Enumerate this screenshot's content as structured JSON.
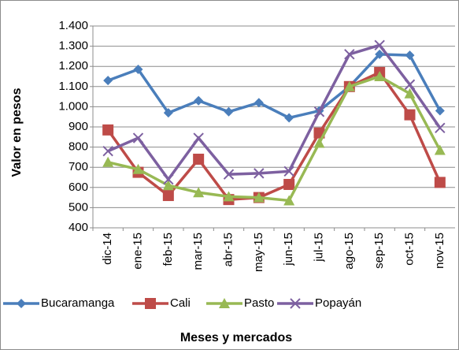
{
  "chart_data": {
    "type": "line",
    "y_label": "Valor en pesos",
    "x_label": "Meses y mercados",
    "categories": [
      "dic-14",
      "ene-15",
      "feb-15",
      "mar-15",
      "abr-15",
      "may-15",
      "jun-15",
      "jul-15",
      "ago-15",
      "sep-15",
      "oct-15",
      "nov-15"
    ],
    "series": [
      {
        "name": "Bucaramanga",
        "color": "#4a7ebb",
        "marker": "diamond",
        "values": [
          1130,
          1185,
          970,
          1030,
          975,
          1020,
          945,
          980,
          1100,
          1260,
          1255,
          980
        ]
      },
      {
        "name": "Cali",
        "color": "#be4b48",
        "marker": "square",
        "values": [
          885,
          675,
          560,
          740,
          540,
          550,
          615,
          870,
          1100,
          1170,
          960,
          625
        ]
      },
      {
        "name": "Pasto",
        "color": "#98b954",
        "marker": "triangle",
        "values": [
          725,
          690,
          610,
          575,
          555,
          550,
          535,
          820,
          1100,
          1150,
          1065,
          785
        ]
      },
      {
        "name": "Popayán",
        "color": "#7d60a0",
        "marker": "x",
        "values": [
          780,
          845,
          640,
          845,
          665,
          670,
          680,
          975,
          1260,
          1305,
          1110,
          895
        ]
      }
    ],
    "ylim": [
      400,
      1400
    ],
    "yticks": [
      400,
      500,
      600,
      700,
      800,
      900,
      {
        "value": 1000,
        "label": "1.000"
      },
      {
        "value": 1100,
        "label": "1.100"
      },
      {
        "value": 1200,
        "label": "1.200"
      },
      {
        "value": 1300,
        "label": "1.300"
      },
      {
        "value": 1400,
        "label": "1.400"
      }
    ],
    "grid": true,
    "legend": "bottom"
  }
}
